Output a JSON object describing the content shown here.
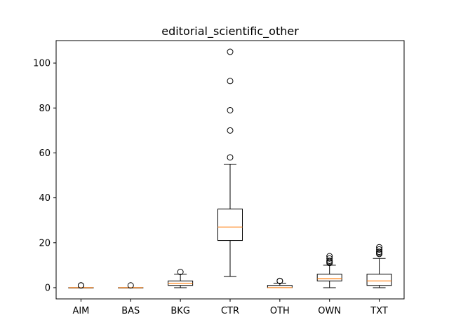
{
  "chart_data": {
    "type": "box",
    "title": "editorial_scientific_other",
    "xlabel": "",
    "ylabel": "",
    "ylim": [
      -5,
      110
    ],
    "yticks": [
      0,
      20,
      40,
      60,
      80,
      100
    ],
    "categories": [
      "AIM",
      "BAS",
      "BKG",
      "CTR",
      "OTH",
      "OWN",
      "TXT"
    ],
    "grid": false,
    "colors": {
      "box": "#000000",
      "median": "#ff7f0e",
      "flier": "#000000"
    },
    "boxes": [
      {
        "label": "AIM",
        "whisker_low": 0,
        "q1": 0,
        "median": 0,
        "q3": 0,
        "whisker_high": 0,
        "fliers": [
          1,
          1
        ]
      },
      {
        "label": "BAS",
        "whisker_low": 0,
        "q1": 0,
        "median": 0,
        "q3": 0,
        "whisker_high": 0,
        "fliers": [
          1
        ]
      },
      {
        "label": "BKG",
        "whisker_low": 0,
        "q1": 1,
        "median": 2,
        "q3": 3,
        "whisker_high": 6,
        "fliers": [
          7
        ]
      },
      {
        "label": "CTR",
        "whisker_low": 5,
        "q1": 21,
        "median": 27,
        "q3": 35,
        "whisker_high": 55,
        "fliers": [
          58,
          70,
          79,
          92,
          105
        ]
      },
      {
        "label": "OTH",
        "whisker_low": 0,
        "q1": 0,
        "median": 0,
        "q3": 1,
        "whisker_high": 2,
        "fliers": [
          3,
          3
        ]
      },
      {
        "label": "OWN",
        "whisker_low": 0,
        "q1": 3,
        "median": 4,
        "q3": 6,
        "whisker_high": 10,
        "fliers": [
          11,
          11.5,
          12,
          13,
          14
        ]
      },
      {
        "label": "TXT",
        "whisker_low": 0,
        "q1": 1,
        "median": 3,
        "q3": 6,
        "whisker_high": 13,
        "fliers": [
          15,
          15.5,
          16,
          17,
          18
        ]
      }
    ]
  }
}
